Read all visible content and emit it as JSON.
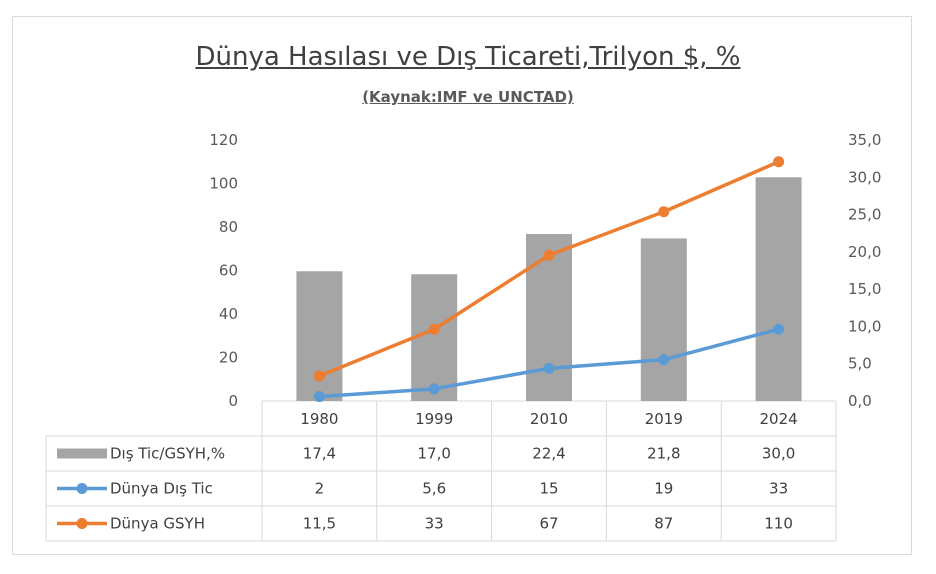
{
  "title": "Dünya Hasılası ve Dış Ticareti,Trilyon $, %",
  "subtitle": "(Kaynak:IMF ve UNCTAD)",
  "colors": {
    "bar": "#a5a5a5",
    "trade": "#5b9bd5",
    "gdp": "#ed7d31"
  },
  "chart_data": {
    "type": "bar",
    "categories": [
      "1980",
      "1999",
      "2010",
      "2019",
      "2024"
    ],
    "left_axis": {
      "ylim": [
        0,
        120
      ],
      "ticks": [
        "0",
        "20",
        "40",
        "60",
        "80",
        "100",
        "120"
      ]
    },
    "right_axis": {
      "ylim": [
        0,
        35
      ],
      "ticks": [
        "0,0",
        "5,0",
        "10,0",
        "15,0",
        "20,0",
        "25,0",
        "30,0",
        "35,0"
      ]
    },
    "series": [
      {
        "name": "Dış Tic/GSYH,%",
        "type": "bar",
        "axis": "right",
        "values": [
          17.4,
          17.0,
          22.4,
          21.8,
          30.0
        ],
        "labels": [
          "17,4",
          "17,0",
          "22,4",
          "21,8",
          "30,0"
        ]
      },
      {
        "name": "Dünya Dış Tic",
        "type": "line",
        "axis": "left",
        "values": [
          2,
          5.6,
          15,
          19,
          33
        ],
        "labels": [
          "2",
          "5,6",
          "15",
          "19",
          "33"
        ]
      },
      {
        "name": "Dünya GSYH",
        "type": "line",
        "axis": "left",
        "values": [
          11.5,
          33,
          67,
          87,
          110
        ],
        "labels": [
          "11,5",
          "33",
          "67",
          "87",
          "110"
        ]
      }
    ],
    "grid": false,
    "legend": "data-table"
  }
}
